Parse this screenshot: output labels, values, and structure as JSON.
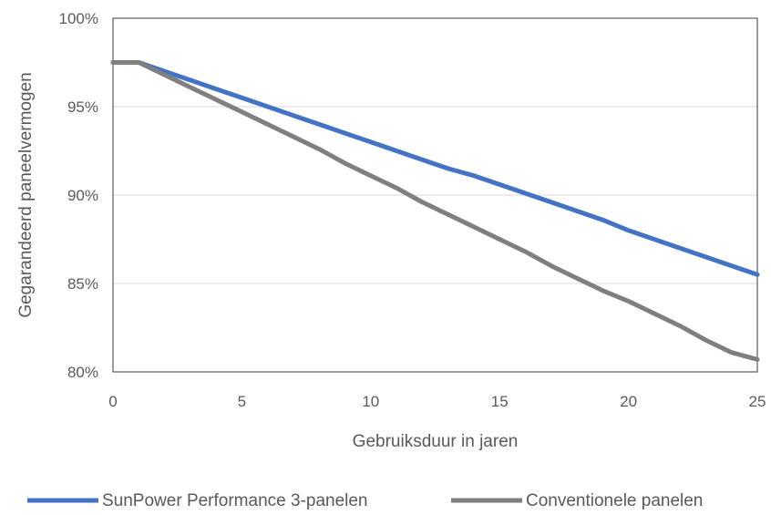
{
  "chart_data": {
    "type": "line",
    "title": "",
    "xlabel": "Gebruiksduur in jaren",
    "ylabel": "Gegarandeerd paneelvermogen",
    "xlim": [
      0,
      25
    ],
    "ylim": [
      80,
      100
    ],
    "x_ticks": [
      "0",
      "5",
      "10",
      "15",
      "20",
      "25"
    ],
    "y_ticks": [
      "80%",
      "85%",
      "90%",
      "95%",
      "100%"
    ],
    "grid": "horizontal",
    "legend_position": "bottom",
    "x": [
      0,
      1,
      2,
      3,
      4,
      5,
      6,
      7,
      8,
      9,
      10,
      11,
      12,
      13,
      14,
      15,
      16,
      17,
      18,
      19,
      20,
      21,
      22,
      23,
      24,
      25
    ],
    "series": [
      {
        "name": "SunPower Performance 3-panelen",
        "color": "#4472C4",
        "values": [
          97.5,
          97.5,
          97.0,
          96.5,
          96.0,
          95.5,
          95.0,
          94.5,
          94.0,
          93.5,
          93.0,
          92.5,
          92.0,
          91.5,
          91.1,
          90.6,
          90.1,
          89.6,
          89.1,
          88.6,
          88.0,
          87.5,
          87.0,
          86.5,
          86.0,
          85.5
        ]
      },
      {
        "name": "Conventionele panelen",
        "color": "#7F7F7F",
        "values": [
          97.5,
          97.5,
          96.8,
          96.1,
          95.4,
          94.7,
          94.0,
          93.3,
          92.6,
          91.8,
          91.1,
          90.4,
          89.6,
          88.9,
          88.2,
          87.5,
          86.8,
          86.0,
          85.3,
          84.6,
          84.0,
          83.3,
          82.6,
          81.8,
          81.1,
          80.7
        ]
      }
    ]
  }
}
